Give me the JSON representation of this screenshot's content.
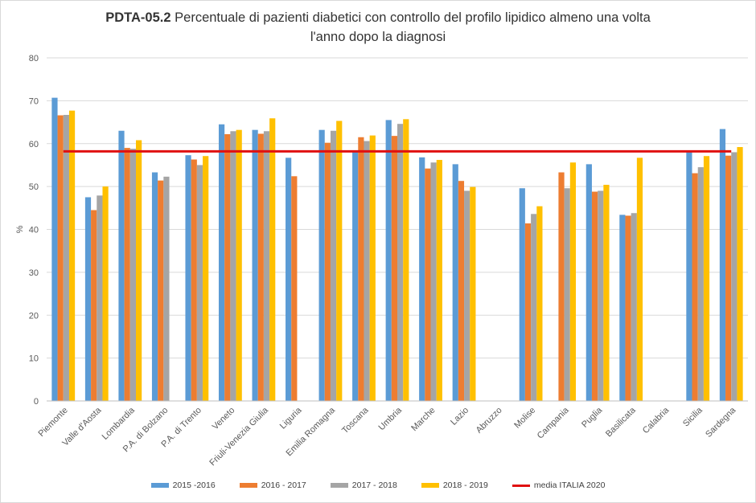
{
  "chart_data": {
    "type": "bar",
    "title_bold": "PDTA-05.2",
    "title_line1": "Percentuale di pazienti diabetici con controllo del profilo lipidico almeno una volta",
    "title_line2": "l'anno dopo la diagnosi",
    "ylabel": "%",
    "ylim": [
      0,
      80
    ],
    "yticks": [
      0,
      10,
      20,
      30,
      40,
      50,
      60,
      70,
      80
    ],
    "categories": [
      "Piemonte",
      "Valle d'Aosta",
      "Lombardia",
      "P.A. di Bolzano",
      "P.A. di Trento",
      "Veneto",
      "Friuli-Venezia Giulia",
      "Liguria",
      "Emilia Romagna",
      "Toscana",
      "Umbria",
      "Marche",
      "Lazio",
      "Abruzzo",
      "Molise",
      "Campania",
      "Puglia",
      "Basilicata",
      "Calabria",
      "Sicilia",
      "Sardegna"
    ],
    "series": [
      {
        "name": "2015 -2016",
        "color": "#5b9bd5",
        "values": [
          70.7,
          47.5,
          63.0,
          53.3,
          57.3,
          64.5,
          63.2,
          56.7,
          63.2,
          58.0,
          65.5,
          56.8,
          55.2,
          null,
          49.6,
          null,
          55.2,
          43.4,
          null,
          58.0,
          63.4
        ]
      },
      {
        "name": "2016 - 2017",
        "color": "#ed7d31",
        "values": [
          66.6,
          44.5,
          59.0,
          51.4,
          56.3,
          62.2,
          62.3,
          52.4,
          60.2,
          61.5,
          61.8,
          54.2,
          51.3,
          null,
          41.4,
          53.3,
          48.8,
          43.2,
          null,
          53.1,
          57.2
        ]
      },
      {
        "name": "2017 - 2018",
        "color": "#a5a5a5",
        "values": [
          66.7,
          47.9,
          58.8,
          52.3,
          55.0,
          62.9,
          62.9,
          null,
          63.0,
          60.6,
          64.6,
          55.6,
          49.0,
          null,
          43.6,
          49.6,
          49.0,
          43.8,
          null,
          54.5,
          58.0
        ]
      },
      {
        "name": "2018 - 2019",
        "color": "#ffc000",
        "values": [
          67.7,
          50.0,
          60.8,
          null,
          57.1,
          63.2,
          65.9,
          null,
          65.3,
          61.9,
          65.7,
          56.2,
          49.9,
          null,
          45.4,
          55.6,
          50.4,
          56.7,
          null,
          57.1,
          59.2
        ]
      }
    ],
    "reference_line": {
      "name": "media ITALIA 2020",
      "value": 58.2,
      "color": "#e01010"
    }
  }
}
